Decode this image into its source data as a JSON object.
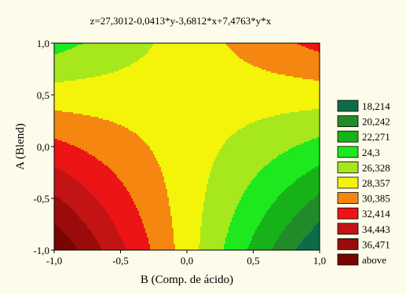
{
  "chart_data": {
    "type": "contour",
    "title": "z=27,3012-0,0413*y-3,6812*x+7,4763*y*x",
    "xlabel": "B (Comp. de ácido)",
    "ylabel": "A (Blend)",
    "x_range": [
      -1.0,
      1.0
    ],
    "y_range": [
      -1.0,
      1.0
    ],
    "x_ticks": [
      "-1,0",
      "-0,5",
      "0,0",
      "0,5",
      "1,0"
    ],
    "y_ticks": [
      "1,0",
      "0,5",
      "0,0",
      "-0,5",
      "-1,0"
    ],
    "x_tick_values": [
      -1.0,
      -0.5,
      0.0,
      0.5,
      1.0
    ],
    "y_tick_values": [
      1.0,
      0.5,
      0.0,
      -0.5,
      -1.0
    ],
    "coefficients": {
      "intercept": 27.3012,
      "y": -0.0413,
      "x": -3.6812,
      "xy": 7.4763
    },
    "grid": false,
    "legend_position": "right",
    "levels": [
      {
        "label": "18,214",
        "value": 18.214,
        "color": "#0e6b4a"
      },
      {
        "label": "20,242",
        "value": 20.242,
        "color": "#238a2a"
      },
      {
        "label": "22,271",
        "value": 22.271,
        "color": "#16b218"
      },
      {
        "label": "24,3",
        "value": 24.3,
        "color": "#1ee81e"
      },
      {
        "label": "26,328",
        "value": 26.328,
        "color": "#a6e81c"
      },
      {
        "label": "28,357",
        "value": 28.357,
        "color": "#f4f40a"
      },
      {
        "label": "30,385",
        "value": 30.385,
        "color": "#f58710"
      },
      {
        "label": "32,414",
        "value": 32.414,
        "color": "#ec1414"
      },
      {
        "label": "34,443",
        "value": 34.443,
        "color": "#c21414"
      },
      {
        "label": "36,471",
        "value": 36.471,
        "color": "#9a0c0c"
      },
      {
        "label": "above",
        "value": null,
        "color": "#780404"
      }
    ]
  }
}
